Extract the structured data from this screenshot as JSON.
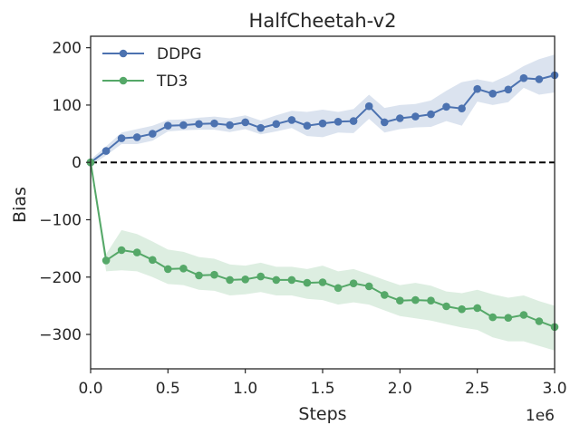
{
  "chart_data": {
    "type": "line",
    "title": "HalfCheetah-v2",
    "xlabel": "Steps",
    "ylabel": "Bias",
    "x_offset_label": "1e6",
    "xlim": [
      0,
      3.0
    ],
    "ylim": [
      -360,
      220
    ],
    "x_ticks": [
      0,
      0.5,
      1.0,
      1.5,
      2.0,
      2.5,
      3.0
    ],
    "x_tick_labels": [
      "0.0",
      "0.5",
      "1.0",
      "1.5",
      "2.0",
      "2.5",
      "3.0"
    ],
    "y_ticks": [
      200,
      100,
      0,
      -100,
      -200,
      -300
    ],
    "y_tick_labels": [
      "200",
      "100",
      "0",
      "−100",
      "−200",
      "−300"
    ],
    "grid": false,
    "legend_position": "upper-left",
    "reference_line": {
      "y": 0,
      "style": "dashed",
      "color": "#000000"
    },
    "x": [
      0,
      0.1,
      0.2,
      0.3,
      0.4,
      0.5,
      0.6,
      0.7,
      0.8,
      0.9,
      1.0,
      1.1,
      1.2,
      1.3,
      1.4,
      1.5,
      1.6,
      1.7,
      1.8,
      1.9,
      2.0,
      2.1,
      2.2,
      2.3,
      2.4,
      2.5,
      2.6,
      2.7,
      2.8,
      2.9,
      3.0
    ],
    "series": [
      {
        "name": "DDPG",
        "color": "#4c72b0",
        "values": [
          0,
          20,
          42,
          44,
          50,
          64,
          65,
          67,
          68,
          65,
          70,
          60,
          67,
          74,
          64,
          68,
          71,
          72,
          98,
          70,
          77,
          80,
          84,
          97,
          94,
          128,
          120,
          127,
          147,
          145,
          152
        ],
        "band_upper": [
          5,
          28,
          52,
          58,
          64,
          74,
          75,
          78,
          80,
          77,
          82,
          73,
          82,
          90,
          88,
          92,
          88,
          93,
          118,
          95,
          100,
          102,
          108,
          125,
          140,
          145,
          140,
          152,
          168,
          180,
          188
        ],
        "band_lower": [
          -5,
          12,
          32,
          32,
          38,
          54,
          56,
          57,
          57,
          53,
          58,
          49,
          54,
          60,
          46,
          44,
          52,
          51,
          76,
          52,
          58,
          61,
          62,
          72,
          64,
          106,
          100,
          105,
          130,
          118,
          122
        ]
      },
      {
        "name": "TD3",
        "color": "#55a868",
        "values": [
          0,
          -171,
          -153,
          -157,
          -170,
          -186,
          -185,
          -197,
          -196,
          -205,
          -204,
          -199,
          -205,
          -205,
          -210,
          -209,
          -219,
          -211,
          -216,
          -231,
          -241,
          -240,
          -241,
          -251,
          -256,
          -254,
          -270,
          -271,
          -266,
          -277,
          -287
        ],
        "band_upper": [
          5,
          -160,
          -118,
          -125,
          -138,
          -152,
          -156,
          -165,
          -168,
          -178,
          -180,
          -175,
          -182,
          -182,
          -186,
          -180,
          -190,
          -186,
          -195,
          -205,
          -214,
          -210,
          -215,
          -225,
          -228,
          -222,
          -230,
          -236,
          -232,
          -242,
          -250
        ],
        "band_lower": [
          -5,
          -190,
          -188,
          -190,
          -200,
          -212,
          -214,
          -222,
          -224,
          -232,
          -230,
          -226,
          -232,
          -232,
          -238,
          -240,
          -248,
          -244,
          -248,
          -258,
          -268,
          -272,
          -276,
          -282,
          -288,
          -292,
          -305,
          -312,
          -312,
          -320,
          -328
        ]
      }
    ]
  }
}
